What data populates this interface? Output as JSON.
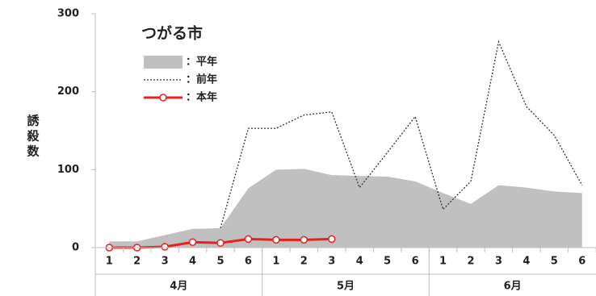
{
  "chart_data": {
    "type": "line",
    "title": "つがる市",
    "ylabel": "誘殺数",
    "categories": [
      "1",
      "2",
      "3",
      "4",
      "5",
      "6",
      "1",
      "2",
      "3",
      "4",
      "5",
      "6",
      "1",
      "2",
      "3",
      "4",
      "5",
      "6"
    ],
    "category_groups": [
      "4月",
      "5月",
      "6月"
    ],
    "ylim": [
      0,
      300
    ],
    "yticks": [
      0,
      100,
      200,
      300
    ],
    "series": [
      {
        "name": "：平年",
        "style": "area",
        "color": "#c0c0c0",
        "values": [
          8,
          8,
          16,
          24,
          25,
          76,
          100,
          101,
          93,
          92,
          91,
          85,
          70,
          56,
          80,
          77,
          72,
          70
        ]
      },
      {
        "name": "：前年",
        "style": "dotted",
        "color": "#333333",
        "values": [
          null,
          null,
          null,
          null,
          25,
          153,
          153,
          170,
          174,
          77,
          122,
          168,
          49,
          85,
          264,
          181,
          144,
          80
        ]
      },
      {
        "name": "：本年",
        "style": "marker",
        "color": "#e8211c",
        "values": [
          0,
          0,
          1,
          7,
          6,
          11,
          10,
          10,
          11,
          null,
          null,
          null,
          null,
          null,
          null,
          null,
          null,
          null
        ]
      }
    ]
  }
}
